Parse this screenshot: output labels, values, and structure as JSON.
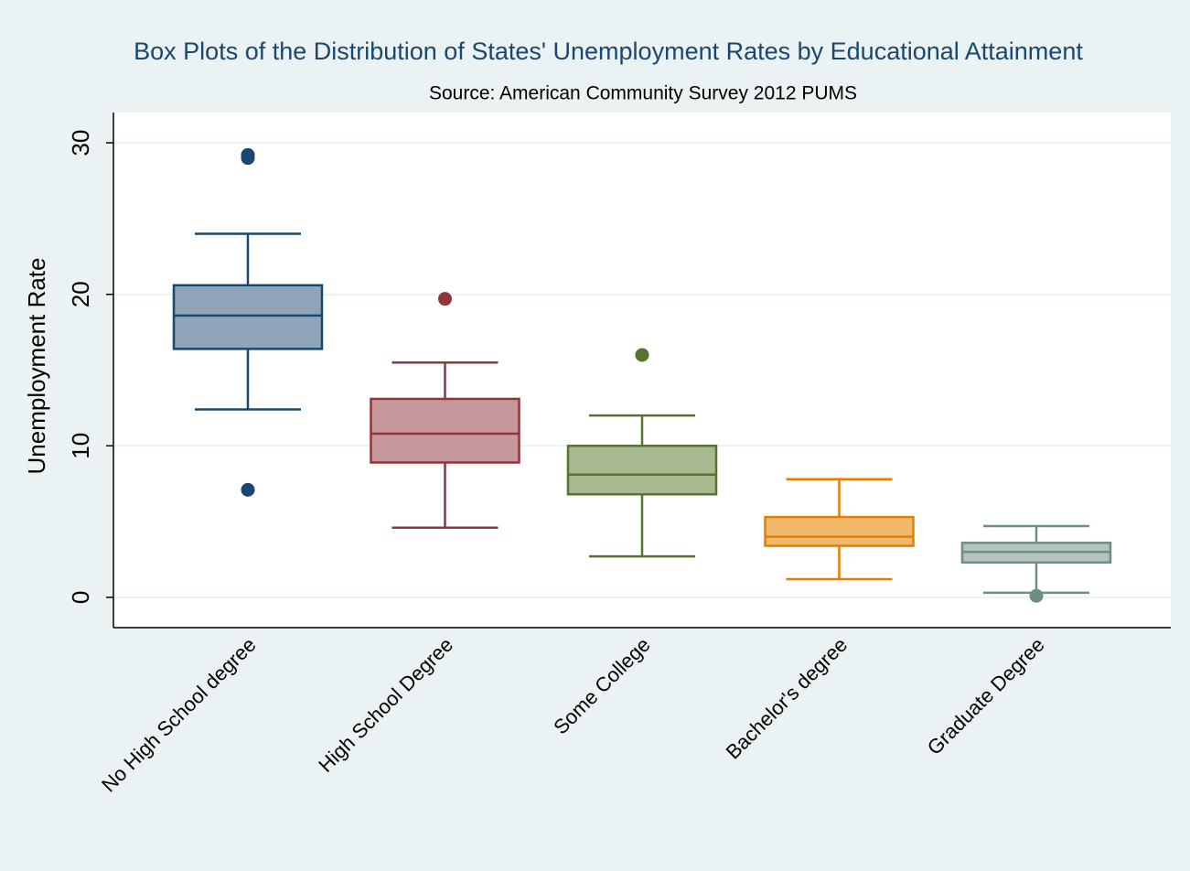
{
  "chart_data": {
    "type": "box",
    "title": "Box Plots of the Distribution of States' Unemployment Rates by Educational Attainment",
    "subtitle": "Source: American Community Survey 2012 PUMS",
    "y_label": "Unemployment Rate",
    "categories": [
      "No High School degree",
      "High School Degree",
      "Some College",
      "Bachelor's degree",
      "Graduate Degree"
    ],
    "boxes": [
      {
        "whislo": 12.4,
        "q1": 16.4,
        "med": 18.6,
        "q3": 20.6,
        "whishi": 24.0,
        "fliers": [
          29.2,
          29.0,
          7.1
        ],
        "color": "#1a476f",
        "fill": "#90a4b9"
      },
      {
        "whislo": 4.6,
        "q1": 8.9,
        "med": 10.8,
        "q3": 13.1,
        "whishi": 15.5,
        "fliers": [
          19.7
        ],
        "color": "#90353b",
        "fill": "#c8999c"
      },
      {
        "whislo": 2.7,
        "q1": 6.8,
        "med": 8.1,
        "q3": 10.0,
        "whishi": 12.0,
        "fliers": [
          16.0
        ],
        "color": "#55752f",
        "fill": "#aab890"
      },
      {
        "whislo": 1.2,
        "q1": 3.4,
        "med": 4.0,
        "q3": 5.3,
        "whishi": 7.8,
        "fliers": [],
        "color": "#e37e00",
        "fill": "#f3b96b"
      },
      {
        "whislo": 0.3,
        "q1": 2.3,
        "med": 3.0,
        "q3": 3.6,
        "whishi": 4.7,
        "fliers": [
          0.1
        ],
        "color": "#6e8e84",
        "fill": "#b3c4bf"
      }
    ],
    "ylim": [
      -2,
      32
    ],
    "yticks": [
      0,
      10,
      20,
      30
    ],
    "grid": true
  }
}
